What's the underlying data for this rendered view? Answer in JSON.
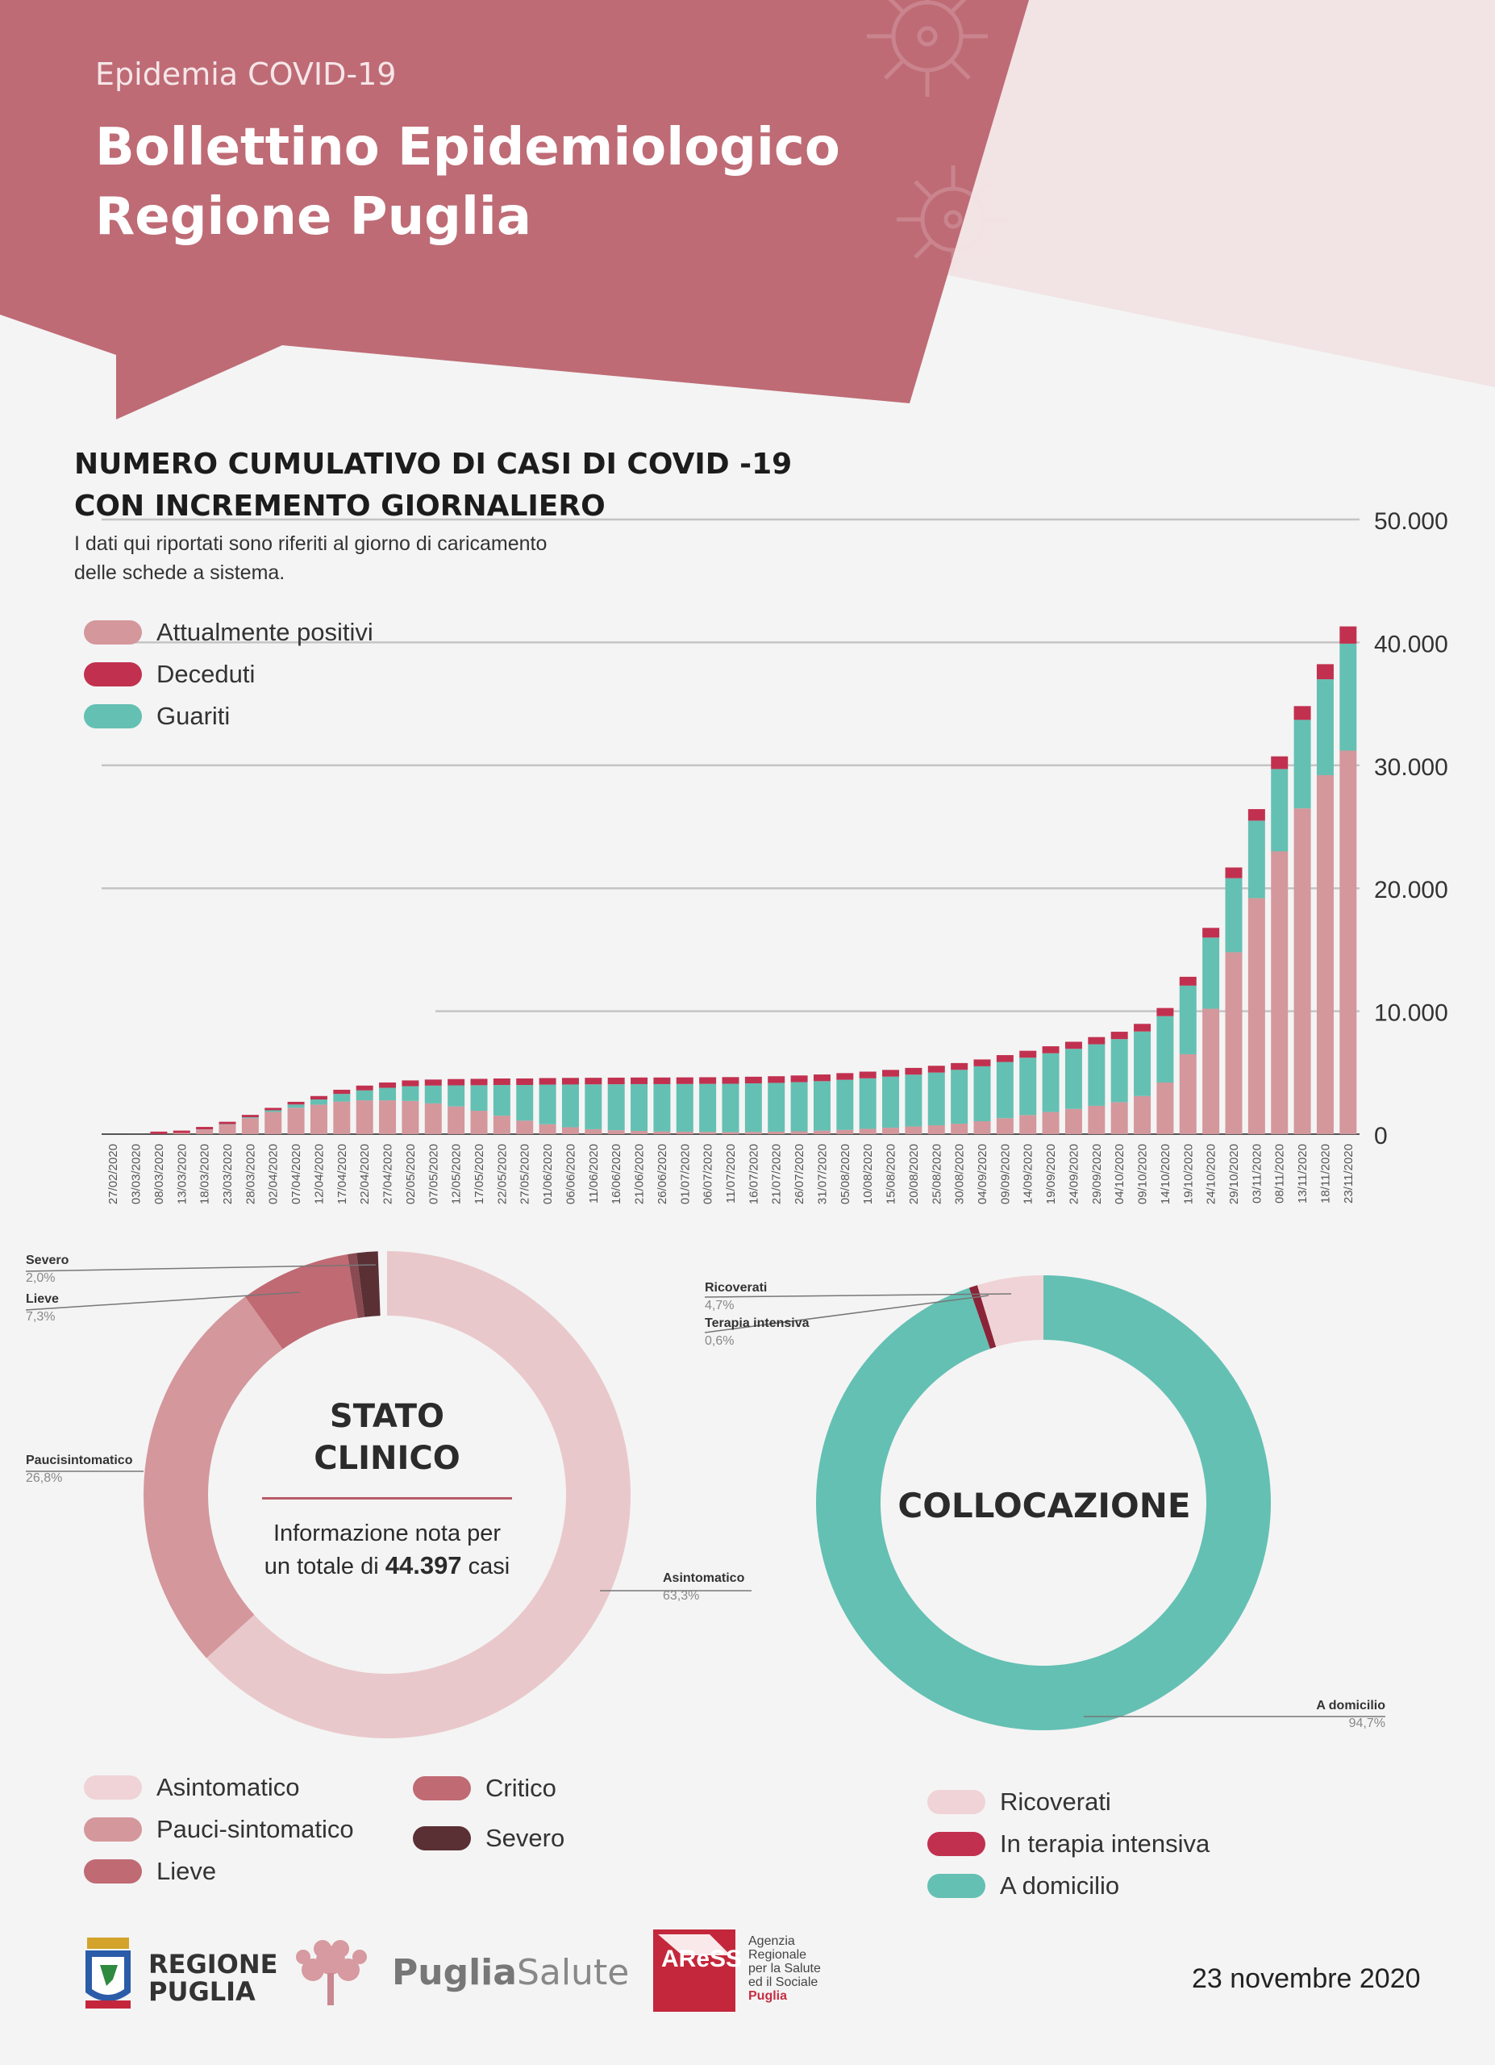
{
  "header": {
    "supertitle": "Epidemia COVID-19",
    "title_line1": "Bollettino Epidemiologico",
    "title_line2": "Regione Puglia"
  },
  "colors": {
    "header_rose": "#be6b75",
    "header_light": "#f2e3e4",
    "attualmente_positivi": "#d4979c",
    "deceduti": "#c1314f",
    "guariti": "#64c0b3",
    "asintomatico": "#e9c8cb",
    "paucisintomatico": "#d4979c",
    "lieve": "#c06a73",
    "critico": "#c06a73",
    "severo": "#5a3035",
    "ricoverati": "#f0d3d6",
    "terapia_intensiva": "#c1314f",
    "a_domicilio": "#64c0b3"
  },
  "bar_chart": {
    "title_line1": "NUMERO CUMULATIVO DI CASI DI COVID -19",
    "title_line2": "CON INCREMENTO GIORNALIERO",
    "note_line1": "I dati qui riportati sono riferiti al giorno di caricamento",
    "note_line2": "delle schede a sistema.",
    "legend": [
      {
        "label": "Attualmente positivi",
        "color": "#d4979c"
      },
      {
        "label": "Deceduti",
        "color": "#c1314f"
      },
      {
        "label": "Guariti",
        "color": "#64c0b3"
      }
    ]
  },
  "donut_stato": {
    "title_line1": "STATO",
    "title_line2": "CLINICO",
    "info_prefix_1": "Informazione nota per",
    "info_prefix_2": "un totale di",
    "info_total": "44.397",
    "info_suffix": "casi",
    "labels": [
      {
        "name": "Severo",
        "pct": "2,0%"
      },
      {
        "name": "Lieve",
        "pct": "7,3%"
      },
      {
        "name": "Paucisintomatico",
        "pct": "26,8%"
      },
      {
        "name": "Asintomatico",
        "pct": "63,3%"
      }
    ],
    "legend_left": [
      {
        "label": "Asintomatico",
        "color": "#f0d3d6"
      },
      {
        "label": "Pauci-sintomatico",
        "color": "#d4979c"
      },
      {
        "label": "Lieve",
        "color": "#c06a73"
      }
    ],
    "legend_right": [
      {
        "label": "Critico",
        "color": "#c06a73"
      },
      {
        "label": "Severo",
        "color": "#5a3035"
      }
    ]
  },
  "donut_collocazione": {
    "title": "COLLOCAZIONE",
    "labels": [
      {
        "name": "Ricoverati",
        "pct": "4,7%"
      },
      {
        "name": "Terapia intensiva",
        "pct": "0,6%"
      },
      {
        "name": "A domicilio",
        "pct": "94,7%"
      }
    ],
    "legend": [
      {
        "label": "Ricoverati",
        "color": "#f0d3d6"
      },
      {
        "label": "In terapia intensiva",
        "color": "#c1314f"
      },
      {
        "label": "A domicilio",
        "color": "#64c0b3"
      }
    ]
  },
  "footer": {
    "regione_line1": "REGIONE",
    "regione_line2": "PUGLIA",
    "puglia_salute_1": "Puglia",
    "puglia_salute_2": "Salute",
    "aress_logo": "AReSS",
    "aress_lines": [
      "Agenzia",
      "Regionale",
      "per la Salute",
      "ed il Sociale"
    ],
    "aress_puglia": "Puglia",
    "date": "23 novembre 2020"
  },
  "chart_data": [
    {
      "type": "bar",
      "stacked": true,
      "title": "NUMERO CUMULATIVO DI CASI DI COVID -19 CON INCREMENTO GIORNALIERO",
      "ylim": [
        0,
        50000
      ],
      "yticks": [
        "0",
        "10.000",
        "20.000",
        "30.000",
        "40.000",
        "50.000"
      ],
      "ytick_values": [
        0,
        10000,
        20000,
        30000,
        40000,
        50000
      ],
      "xtick_labels": [
        "27/02/2020",
        "03/03/2020",
        "08/03/2020",
        "13/03/2020",
        "18/03/2020",
        "23/03/2020",
        "28/03/2020",
        "02/04/2020",
        "07/04/2020",
        "12/04/2020",
        "17/04/2020",
        "22/04/2020",
        "27/04/2020",
        "02/05/2020",
        "07/05/2020",
        "12/05/2020",
        "17/05/2020",
        "22/05/2020",
        "27/05/2020",
        "01/06/2020",
        "06/06/2020",
        "11/06/2020",
        "16/06/2020",
        "21/06/2020",
        "26/06/2020",
        "01/07/2020",
        "06/07/2020",
        "11/07/2020",
        "16/07/2020",
        "21/07/2020",
        "26/07/2020",
        "31/07/2020",
        "05/08/2020",
        "10/08/2020",
        "15/08/2020",
        "20/08/2020",
        "25/08/2020",
        "30/08/2020",
        "04/09/2020",
        "09/09/2020",
        "14/09/2020",
        "19/09/2020",
        "24/09/2020",
        "29/09/2020",
        "04/10/2020",
        "09/10/2020",
        "14/10/2020",
        "19/10/2020",
        "24/10/2020",
        "29/10/2020",
        "03/11/2020",
        "08/11/2020",
        "13/11/2020",
        "18/11/2020",
        "23/11/2020"
      ],
      "grid": true,
      "legend_position": "top-left",
      "x": [
        "27/02/2020",
        "03/03/2020",
        "08/03/2020",
        "13/03/2020",
        "18/03/2020",
        "23/03/2020",
        "28/03/2020",
        "02/04/2020",
        "07/04/2020",
        "12/04/2020",
        "17/04/2020",
        "22/04/2020",
        "27/04/2020",
        "02/05/2020",
        "07/05/2020",
        "12/05/2020",
        "17/05/2020",
        "22/05/2020",
        "27/05/2020",
        "01/06/2020",
        "06/06/2020",
        "11/06/2020",
        "16/06/2020",
        "21/06/2020",
        "26/06/2020",
        "01/07/2020",
        "06/07/2020",
        "11/07/2020",
        "16/07/2020",
        "21/07/2020",
        "26/07/2020",
        "31/07/2020",
        "05/08/2020",
        "10/08/2020",
        "15/08/2020",
        "20/08/2020",
        "25/08/2020",
        "30/08/2020",
        "04/09/2020",
        "09/09/2020",
        "14/09/2020",
        "19/09/2020",
        "24/09/2020",
        "29/09/2020",
        "04/10/2020",
        "09/10/2020",
        "14/10/2020",
        "19/10/2020",
        "24/10/2020",
        "29/10/2020",
        "03/11/2020",
        "08/11/2020",
        "13/11/2020",
        "18/11/2020",
        "23/11/2020"
      ],
      "series": [
        {
          "name": "Attualmente positivi",
          "values": [
            0,
            2,
            10,
            90,
            380,
            780,
            1300,
            1800,
            2150,
            2400,
            2650,
            2750,
            2750,
            2700,
            2500,
            2250,
            1900,
            1500,
            1100,
            800,
            560,
            400,
            320,
            260,
            220,
            200,
            180,
            170,
            180,
            200,
            230,
            280,
            350,
            430,
            520,
            620,
            720,
            850,
            1050,
            1300,
            1550,
            1800,
            2050,
            2300,
            2600,
            3100,
            4200,
            6500,
            10200,
            14800,
            19200,
            23000,
            26500,
            29200,
            31200
          ]
        },
        {
          "name": "Deceduti",
          "values": [
            0,
            0,
            1,
            3,
            12,
            40,
            85,
            150,
            220,
            280,
            340,
            390,
            430,
            470,
            490,
            510,
            520,
            527,
            530,
            532,
            534,
            535,
            536,
            537,
            538,
            538,
            539,
            540,
            540,
            541,
            542,
            543,
            544,
            545,
            546,
            548,
            550,
            552,
            555,
            558,
            562,
            568,
            575,
            585,
            600,
            620,
            660,
            720,
            790,
            870,
            940,
            1030,
            1120,
            1230,
            1400
          ]
        },
        {
          "name": "Guariti",
          "values": [
            0,
            0,
            0,
            2,
            10,
            30,
            70,
            140,
            260,
            420,
            620,
            810,
            1020,
            1200,
            1450,
            1720,
            2080,
            2500,
            2900,
            3230,
            3480,
            3650,
            3740,
            3810,
            3850,
            3880,
            3910,
            3930,
            3950,
            3970,
            4000,
            4030,
            4070,
            4110,
            4160,
            4220,
            4290,
            4380,
            4470,
            4570,
            4670,
            4780,
            4890,
            5010,
            5130,
            5250,
            5400,
            5580,
            5790,
            6020,
            6300,
            6700,
            7200,
            7800,
            8700
          ]
        }
      ]
    },
    {
      "type": "pie",
      "title": "STATO CLINICO",
      "categories": [
        "Asintomatico",
        "Paucisintomatico",
        "Lieve",
        "Severo"
      ],
      "values": [
        63.3,
        26.8,
        7.3,
        2.0
      ]
    },
    {
      "type": "pie",
      "title": "COLLOCAZIONE",
      "categories": [
        "A domicilio",
        "Ricoverati",
        "Terapia intensiva"
      ],
      "values": [
        94.7,
        4.7,
        0.6
      ]
    }
  ]
}
